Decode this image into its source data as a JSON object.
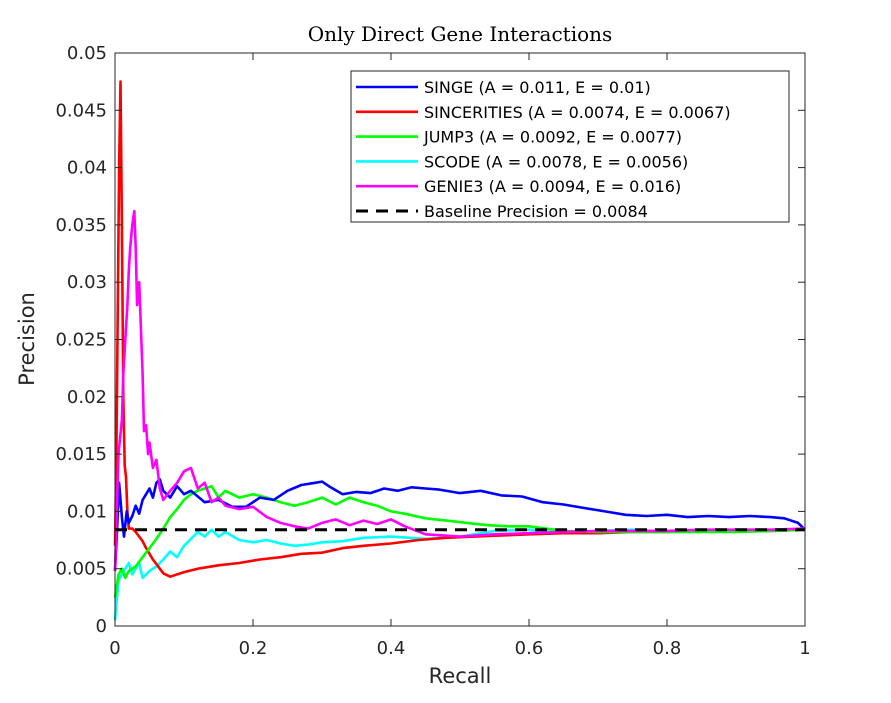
{
  "chart_data": {
    "type": "line",
    "title": "Only Direct Gene Interactions",
    "xlabel": "Recall",
    "ylabel": "Precision",
    "xlim": [
      0,
      1
    ],
    "ylim": [
      0,
      0.05
    ],
    "xticks": [
      0,
      0.2,
      0.4,
      0.6,
      0.8,
      1
    ],
    "xtick_labels": [
      "0",
      "0.2",
      "0.4",
      "0.6",
      "0.8",
      "1"
    ],
    "yticks": [
      0,
      0.005,
      0.01,
      0.015,
      0.02,
      0.025,
      0.03,
      0.035,
      0.04,
      0.045,
      0.05
    ],
    "ytick_labels": [
      "0",
      "0.005",
      "0.01",
      "0.015",
      "0.02",
      "0.025",
      "0.03",
      "0.035",
      "0.04",
      "0.045",
      "0.05"
    ],
    "grid": false,
    "legend_position": "top-right",
    "series": [
      {
        "name": "SINGE (A = 0.011, E = 0.01)",
        "color": "#0000ff",
        "x": [
          0,
          0.003,
          0.006,
          0.01,
          0.013,
          0.017,
          0.02,
          0.025,
          0.03,
          0.035,
          0.04,
          0.045,
          0.05,
          0.055,
          0.06,
          0.065,
          0.07,
          0.08,
          0.09,
          0.1,
          0.11,
          0.12,
          0.13,
          0.15,
          0.17,
          0.19,
          0.21,
          0.23,
          0.25,
          0.27,
          0.29,
          0.3,
          0.31,
          0.33,
          0.35,
          0.37,
          0.39,
          0.41,
          0.43,
          0.45,
          0.47,
          0.5,
          0.53,
          0.56,
          0.59,
          0.62,
          0.65,
          0.68,
          0.71,
          0.74,
          0.77,
          0.8,
          0.83,
          0.86,
          0.89,
          0.92,
          0.95,
          0.97,
          0.99,
          1
        ],
        "y": [
          0.0048,
          0.0085,
          0.0125,
          0.0095,
          0.0078,
          0.01,
          0.009,
          0.0096,
          0.0105,
          0.0098,
          0.011,
          0.0115,
          0.012,
          0.0112,
          0.0125,
          0.0128,
          0.0118,
          0.0112,
          0.0122,
          0.0115,
          0.0118,
          0.0113,
          0.0108,
          0.011,
          0.0104,
          0.0104,
          0.0112,
          0.011,
          0.0118,
          0.0123,
          0.0125,
          0.0126,
          0.0122,
          0.0115,
          0.0117,
          0.0116,
          0.012,
          0.0118,
          0.0121,
          0.012,
          0.0119,
          0.0116,
          0.0118,
          0.0114,
          0.0113,
          0.0108,
          0.0106,
          0.0103,
          0.01,
          0.0097,
          0.0096,
          0.0097,
          0.0095,
          0.0096,
          0.0095,
          0.0096,
          0.0095,
          0.0094,
          0.009,
          0.0084
        ]
      },
      {
        "name": "SINCERITIES (A = 0.0074, E = 0.0067)",
        "color": "#ff0000",
        "x": [
          0,
          0.002,
          0.004,
          0.006,
          0.008,
          0.01,
          0.012,
          0.014,
          0.016,
          0.018,
          0.02,
          0.025,
          0.03,
          0.035,
          0.04,
          0.045,
          0.05,
          0.055,
          0.06,
          0.065,
          0.07,
          0.08,
          0.1,
          0.12,
          0.15,
          0.18,
          0.21,
          0.24,
          0.27,
          0.3,
          0.33,
          0.36,
          0.4,
          0.44,
          0.48,
          0.52,
          0.56,
          0.6,
          0.65,
          0.7,
          0.75,
          0.8,
          0.85,
          0.9,
          0.95,
          1
        ],
        "y": [
          0.007,
          0.015,
          0.028,
          0.04,
          0.0475,
          0.035,
          0.02,
          0.014,
          0.013,
          0.01,
          0.0085,
          0.0085,
          0.0082,
          0.0078,
          0.0074,
          0.0068,
          0.0063,
          0.0058,
          0.0054,
          0.005,
          0.0046,
          0.0043,
          0.0047,
          0.005,
          0.0053,
          0.0055,
          0.0058,
          0.006,
          0.0063,
          0.0064,
          0.0068,
          0.007,
          0.0072,
          0.0075,
          0.0077,
          0.0078,
          0.0079,
          0.008,
          0.0081,
          0.0081,
          0.0082,
          0.0082,
          0.0083,
          0.0083,
          0.0083,
          0.0084
        ]
      },
      {
        "name": "JUMP3 (A = 0.0092, E = 0.0077)",
        "color": "#00ff00",
        "x": [
          0,
          0.005,
          0.01,
          0.015,
          0.02,
          0.03,
          0.04,
          0.05,
          0.06,
          0.07,
          0.08,
          0.09,
          0.1,
          0.11,
          0.12,
          0.13,
          0.14,
          0.15,
          0.16,
          0.17,
          0.18,
          0.2,
          0.22,
          0.24,
          0.26,
          0.28,
          0.3,
          0.32,
          0.34,
          0.36,
          0.38,
          0.4,
          0.42,
          0.45,
          0.48,
          0.51,
          0.54,
          0.57,
          0.6,
          0.65,
          0.7,
          0.75,
          0.8,
          0.85,
          0.9,
          0.95,
          1
        ],
        "y": [
          0.0025,
          0.0045,
          0.005,
          0.0042,
          0.0048,
          0.0052,
          0.006,
          0.0068,
          0.0076,
          0.0085,
          0.0095,
          0.0102,
          0.011,
          0.0115,
          0.0118,
          0.012,
          0.0122,
          0.0112,
          0.0118,
          0.0115,
          0.0112,
          0.0115,
          0.0112,
          0.0108,
          0.0105,
          0.0108,
          0.0112,
          0.0106,
          0.0112,
          0.0108,
          0.0105,
          0.01,
          0.0098,
          0.0094,
          0.0092,
          0.009,
          0.0088,
          0.0087,
          0.0087,
          0.0083,
          0.0082,
          0.0082,
          0.0082,
          0.0082,
          0.0082,
          0.0083,
          0.0084
        ]
      },
      {
        "name": "SCODE (A = 0.0078, E = 0.0056)",
        "color": "#00ffff",
        "x": [
          0,
          0.005,
          0.01,
          0.015,
          0.02,
          0.025,
          0.03,
          0.035,
          0.04,
          0.05,
          0.06,
          0.07,
          0.08,
          0.09,
          0.1,
          0.11,
          0.12,
          0.13,
          0.14,
          0.15,
          0.16,
          0.18,
          0.2,
          0.22,
          0.24,
          0.26,
          0.28,
          0.3,
          0.33,
          0.36,
          0.4,
          0.45,
          0.5,
          0.55,
          0.6,
          0.65,
          0.7,
          0.75,
          0.8,
          0.85,
          0.9,
          0.95,
          1
        ],
        "y": [
          0.0005,
          0.004,
          0.0045,
          0.005,
          0.0055,
          0.0045,
          0.005,
          0.0055,
          0.0042,
          0.0048,
          0.0052,
          0.0058,
          0.0065,
          0.006,
          0.007,
          0.0076,
          0.0082,
          0.0078,
          0.0084,
          0.0078,
          0.0082,
          0.0075,
          0.0073,
          0.0075,
          0.0072,
          0.007,
          0.0071,
          0.0073,
          0.0074,
          0.0077,
          0.0078,
          0.0076,
          0.0078,
          0.0083,
          0.0084,
          0.0081,
          0.0083,
          0.0084,
          0.0082,
          0.0083,
          0.0084,
          0.0083,
          0.0084
        ]
      },
      {
        "name": "GENIE3 (A = 0.0094, E = 0.016)",
        "color": "#ff00ff",
        "x": [
          0,
          0.005,
          0.01,
          0.012,
          0.015,
          0.018,
          0.02,
          0.022,
          0.025,
          0.028,
          0.03,
          0.032,
          0.035,
          0.04,
          0.042,
          0.045,
          0.048,
          0.05,
          0.055,
          0.06,
          0.065,
          0.07,
          0.08,
          0.09,
          0.1,
          0.11,
          0.12,
          0.13,
          0.14,
          0.15,
          0.16,
          0.18,
          0.2,
          0.22,
          0.24,
          0.26,
          0.28,
          0.3,
          0.32,
          0.34,
          0.36,
          0.38,
          0.4,
          0.42,
          0.45,
          0.5,
          0.55,
          0.6,
          0.65,
          0.7,
          0.75,
          0.8,
          0.85,
          0.9,
          0.95,
          1
        ],
        "y": [
          0.0048,
          0.015,
          0.018,
          0.022,
          0.025,
          0.028,
          0.031,
          0.033,
          0.035,
          0.0362,
          0.033,
          0.028,
          0.03,
          0.022,
          0.017,
          0.0175,
          0.015,
          0.016,
          0.0138,
          0.0145,
          0.012,
          0.011,
          0.0118,
          0.0125,
          0.0135,
          0.0138,
          0.012,
          0.0125,
          0.0108,
          0.0112,
          0.0105,
          0.0102,
          0.0104,
          0.0095,
          0.009,
          0.0087,
          0.0085,
          0.009,
          0.0093,
          0.0088,
          0.0092,
          0.0089,
          0.0093,
          0.0087,
          0.008,
          0.0078,
          0.008,
          0.0081,
          0.0082,
          0.0083,
          0.0083,
          0.0083,
          0.0084,
          0.0084,
          0.0084,
          0.0085
        ]
      },
      {
        "name": "Baseline Precision = 0.0084",
        "color": "#000000",
        "dashed": true,
        "x": [
          0,
          1
        ],
        "y": [
          0.0084,
          0.0084
        ]
      }
    ]
  }
}
